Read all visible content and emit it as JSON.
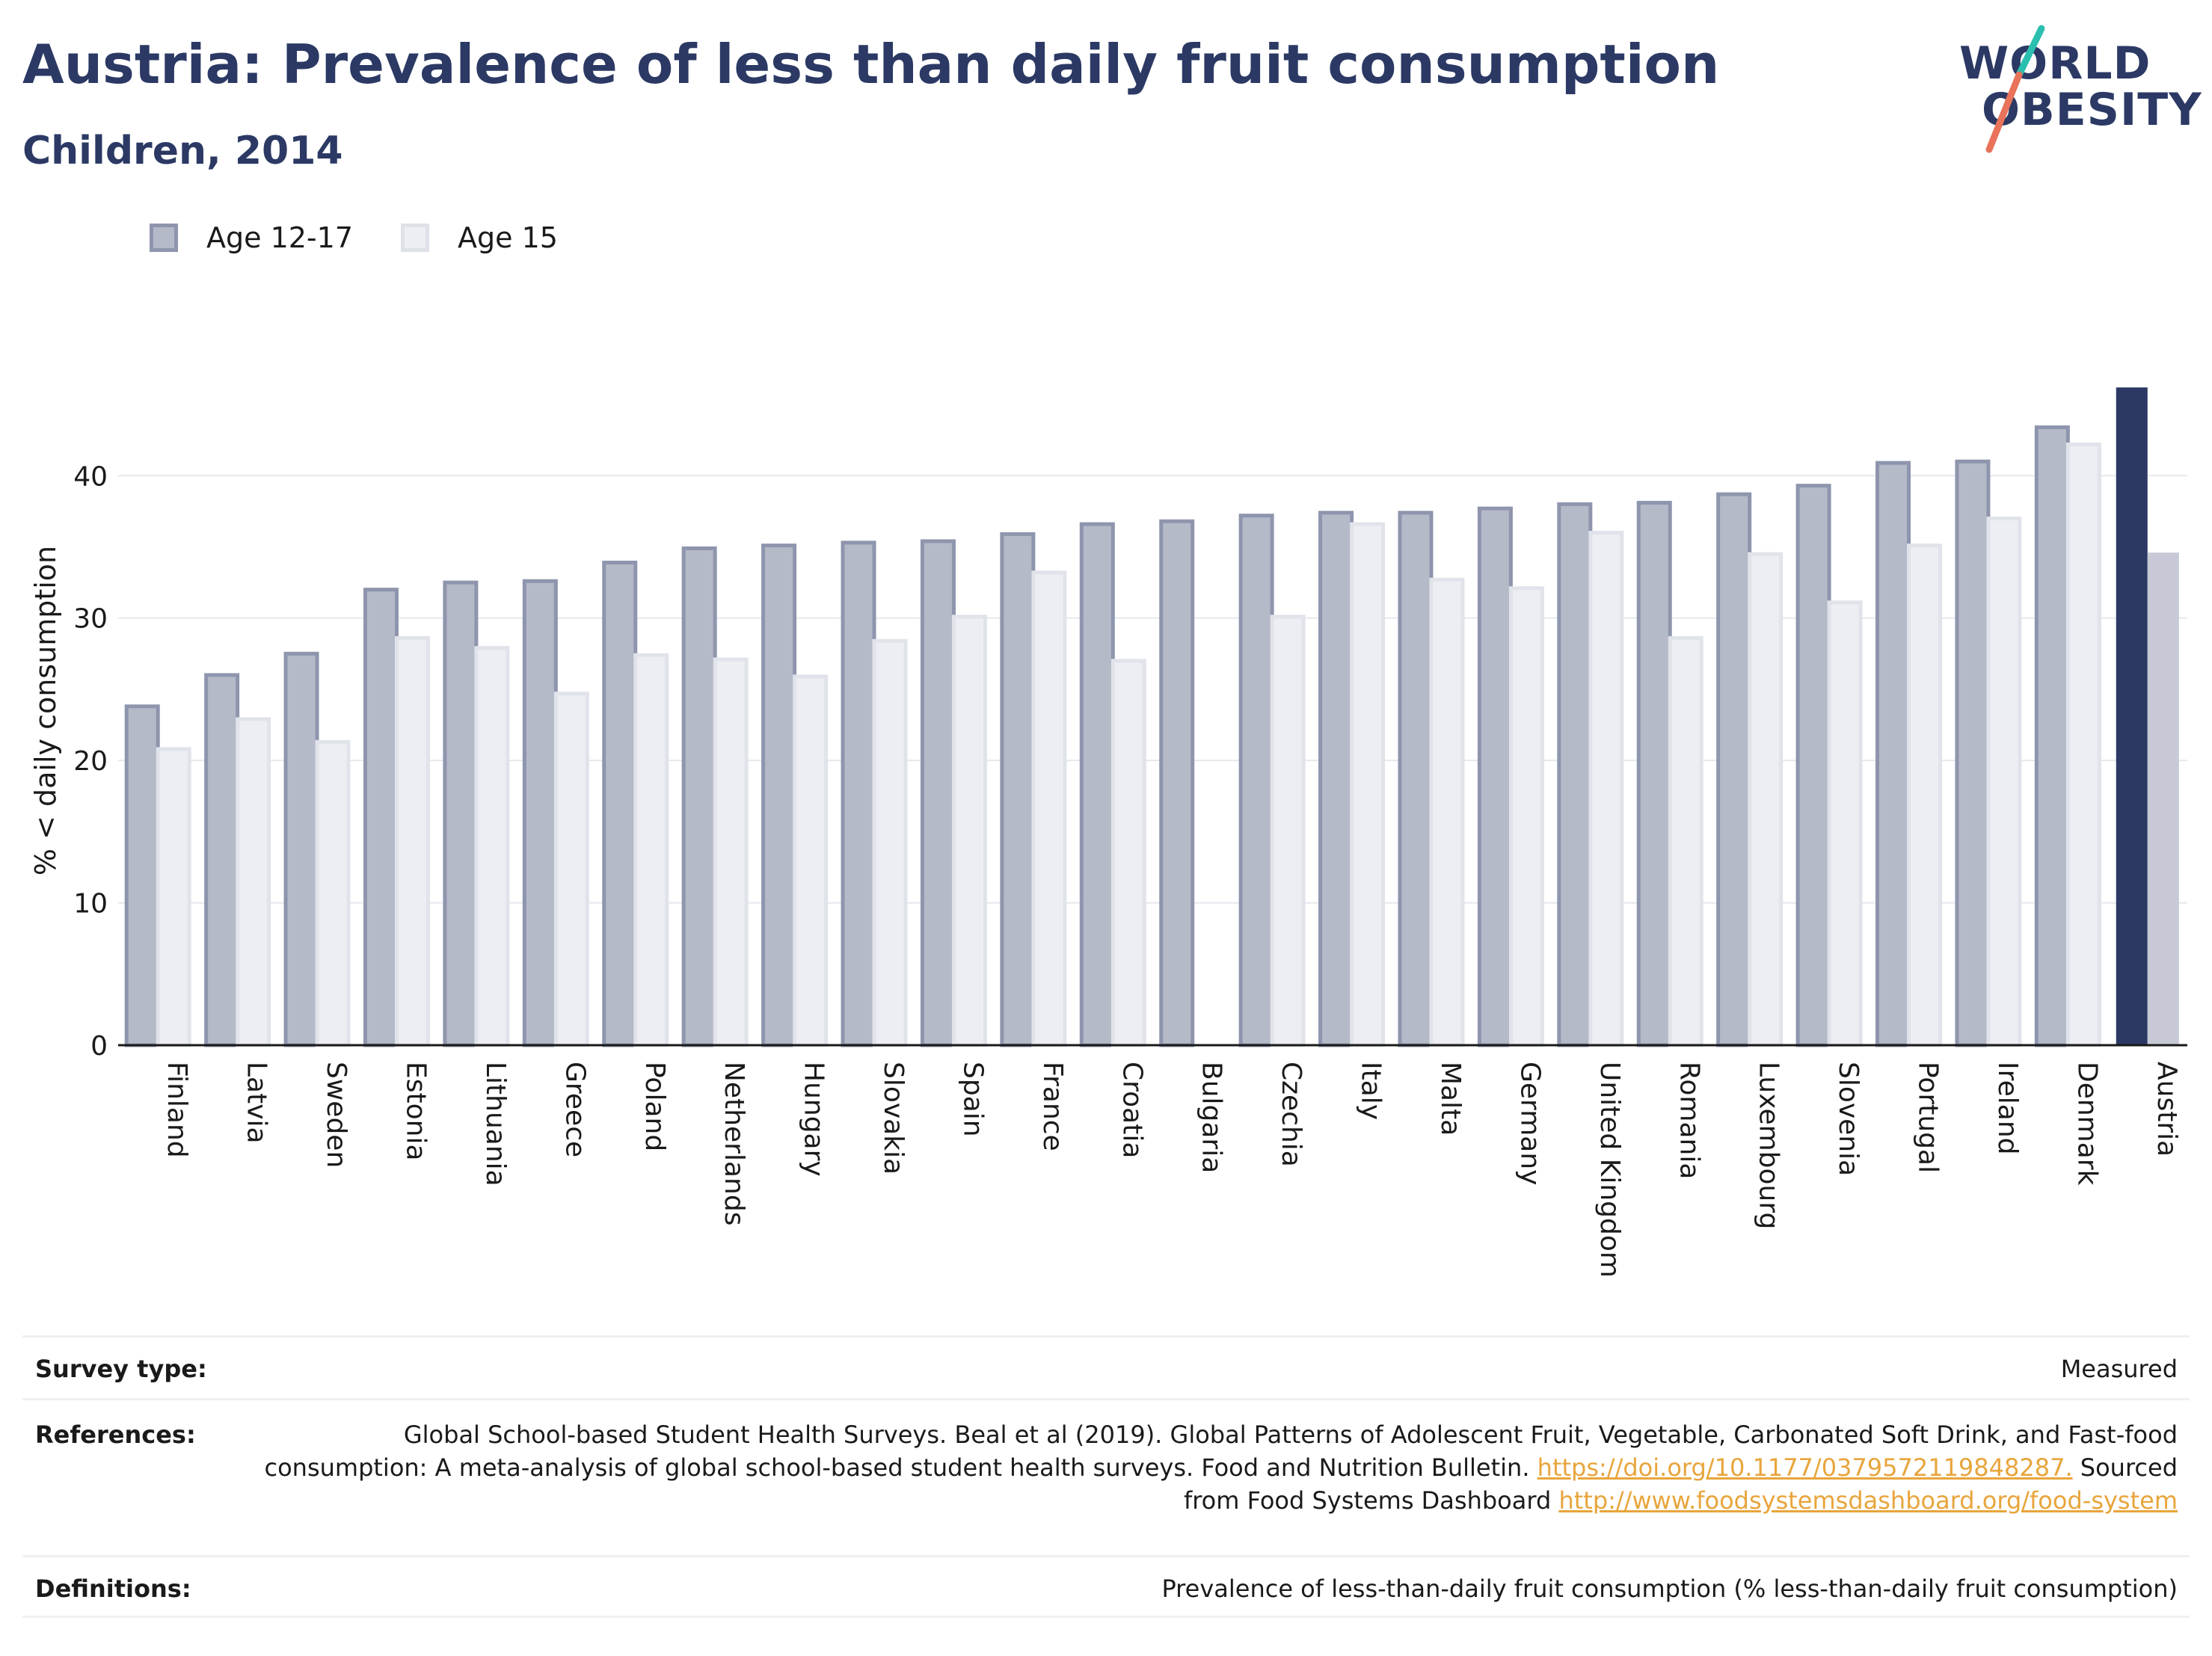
{
  "header": {
    "title": "Austria: Prevalence of less than daily fruit consumption",
    "subtitle": "Children, 2014"
  },
  "logo": {
    "line1": "WORLD",
    "line2": "OBESITY",
    "accent_colors": [
      "#2bbfb0",
      "#e8735a"
    ]
  },
  "legend": {
    "items": [
      {
        "label": "Age 12-17",
        "color": "#b5bac9",
        "border": "#8e95ad"
      },
      {
        "label": "Age 15",
        "color": "#eceef3",
        "border": "#dfe1e8"
      }
    ]
  },
  "chart_data": {
    "type": "bar",
    "ylabel": "% < daily consumption",
    "xlabel": "",
    "ylim": [
      0,
      47
    ],
    "yticks": [
      0,
      10,
      20,
      30,
      40
    ],
    "grid": true,
    "legend_position": "top-left",
    "categories": [
      "Finland",
      "Latvia",
      "Sweden",
      "Estonia",
      "Lithuania",
      "Greece",
      "Poland",
      "Netherlands",
      "Hungary",
      "Slovakia",
      "Spain",
      "France",
      "Croatia",
      "Bulgaria",
      "Czechia",
      "Italy",
      "Malta",
      "Germany",
      "United Kingdom",
      "Romania",
      "Luxembourg",
      "Slovenia",
      "Portugal",
      "Ireland",
      "Denmark",
      "Austria"
    ],
    "highlight_category": "Austria",
    "highlight_colors": {
      "Age 12-17": "#2b3964",
      "Age 15": "#c7cad6"
    },
    "series": [
      {
        "name": "Age 12-17",
        "values": [
          23.8,
          26.0,
          27.5,
          32.0,
          32.5,
          32.6,
          33.9,
          34.9,
          35.1,
          35.3,
          35.4,
          35.9,
          36.6,
          36.8,
          37.2,
          37.4,
          37.4,
          37.7,
          38.0,
          38.1,
          38.7,
          39.3,
          40.9,
          41.0,
          43.4,
          46.2
        ]
      },
      {
        "name": "Age 15",
        "values": [
          20.8,
          22.9,
          21.3,
          28.6,
          27.9,
          24.7,
          27.4,
          27.1,
          25.9,
          28.4,
          30.1,
          33.2,
          27.0,
          null,
          30.1,
          36.6,
          32.7,
          32.1,
          36.0,
          28.6,
          34.5,
          31.1,
          35.1,
          37.0,
          42.2,
          34.6
        ]
      }
    ]
  },
  "footer": {
    "survey_label": "Survey type:",
    "survey_value": "Measured",
    "references_label": "References:",
    "references_text": "Global School-based Student Health Surveys. Beal et al (2019). Global Patterns of Adolescent Fruit, Vegetable, Carbonated Soft Drink, and Fast-food consumption: A meta-analysis of global school-based student health surveys. Food and Nutrition Bulletin.",
    "references_link1": "https://doi.org/10.1177/0379572119848287.",
    "references_mid": " Sourced from Food Systems Dashboard ",
    "references_link2": "http://www.foodsystemsdashboard.org/food-system",
    "definitions_label": "Definitions:",
    "definitions_value": "Prevalence of less-than-daily fruit consumption (% less-than-daily fruit consumption)"
  }
}
